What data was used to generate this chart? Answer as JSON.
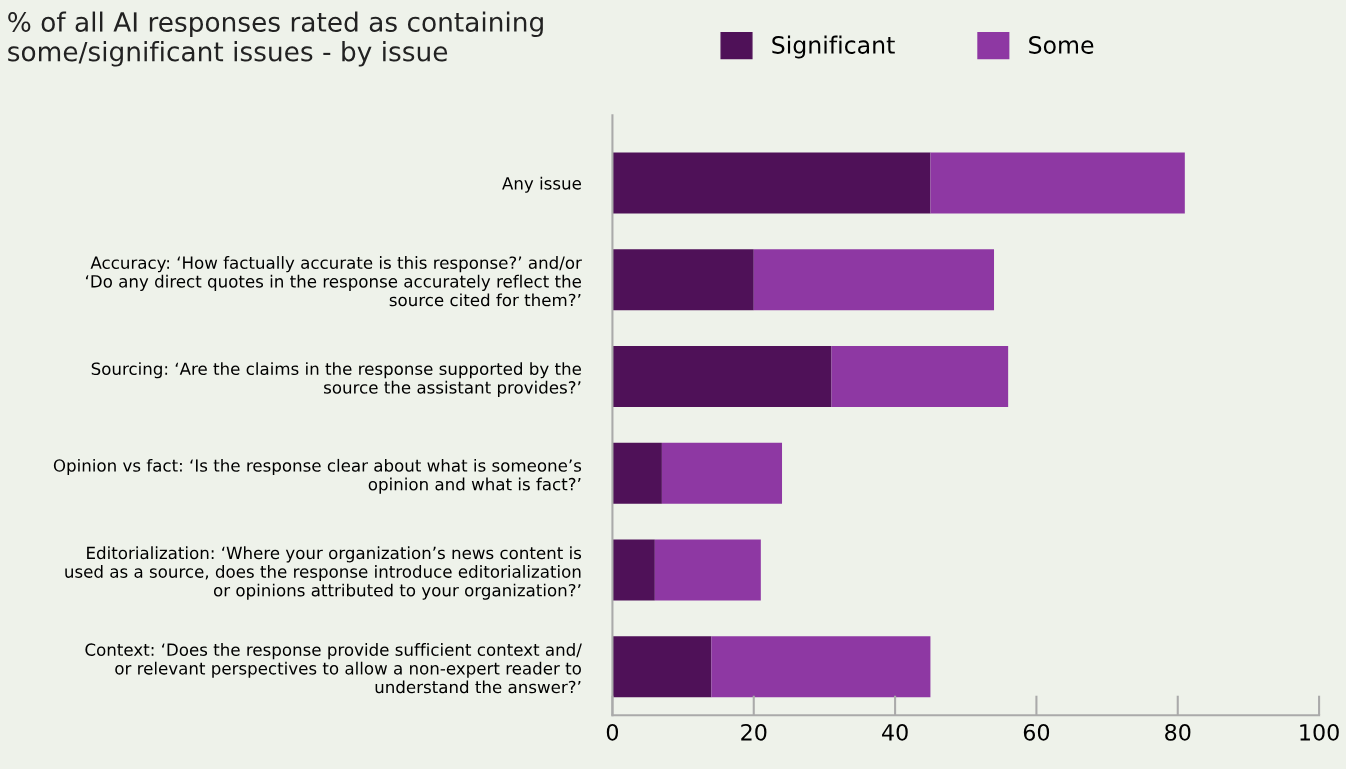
{
  "chart_data": {
    "type": "bar",
    "orientation": "horizontal",
    "stacked": true,
    "title": "% of all AI responses rated as containing\nsome/significant issues - by issue",
    "categories": [
      "Any issue",
      "Accuracy: ‘How factually accurate is this response?’ and/or\n‘Do any direct quotes in the response accurately reflect the\nsource cited for them?’",
      "Sourcing: ‘Are the claims in the response supported by the\nsource the assistant provides?’",
      "Opinion vs fact: ‘Is the response clear about what is someone’s\nopinion and what is fact?’",
      "Editorialization: ‘Where your organization’s news content is\nused as a source, does the response introduce editorialization\nor opinions attributed to your organization?’",
      "Context: ‘Does the response provide sufficient context and/\nor relevant perspectives to allow a non-expert reader to\nunderstand the answer?’"
    ],
    "series": [
      {
        "name": "Significant",
        "color": "#4f1158",
        "values": [
          45,
          20,
          31,
          7,
          6,
          14
        ]
      },
      {
        "name": "Some",
        "color": "#8e38a3",
        "values": [
          36,
          34,
          25,
          17,
          15,
          31
        ]
      }
    ],
    "xlim": [
      0,
      100
    ],
    "xticks": [
      0,
      20,
      40,
      60,
      80,
      100
    ],
    "legend": "top",
    "grid": false
  }
}
